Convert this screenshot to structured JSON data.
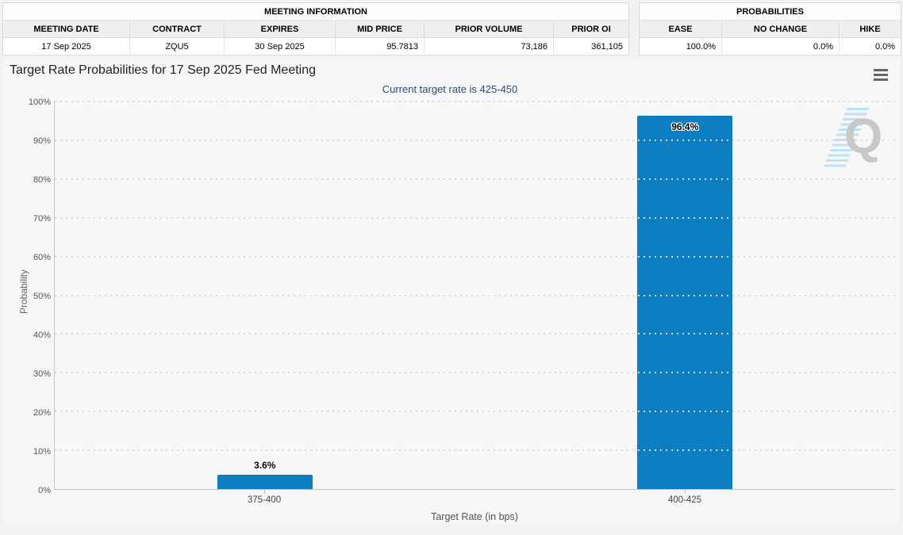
{
  "meeting_info": {
    "title": "MEETING INFORMATION",
    "columns": [
      "MEETING DATE",
      "CONTRACT",
      "EXPIRES",
      "MID PRICE",
      "PRIOR VOLUME",
      "PRIOR OI"
    ],
    "values": [
      "17 Sep 2025",
      "ZQU5",
      "30 Sep 2025",
      "95.7813",
      "73,186",
      "361,105"
    ]
  },
  "probabilities": {
    "title": "PROBABILITIES",
    "columns": [
      "EASE",
      "NO CHANGE",
      "HIKE"
    ],
    "values": [
      "100.0%",
      "0.0%",
      "0.0%"
    ]
  },
  "chart": {
    "title": "Target Rate Probabilities for 17 Sep 2025 Fed Meeting",
    "subtitle": "Current target rate is 425-450",
    "menu_icon": "hamburger-menu",
    "watermark_letter": "Q"
  },
  "chart_data": {
    "type": "bar",
    "title": "Target Rate Probabilities for 17 Sep 2025 Fed Meeting",
    "subtitle": "Current target rate is 425-450",
    "categories": [
      "375-400",
      "400-425"
    ],
    "values": [
      3.6,
      96.4
    ],
    "value_labels": [
      "3.6%",
      "96.4%"
    ],
    "xlabel": "Target Rate (in bps)",
    "ylabel": "Probability",
    "ylim": [
      0,
      100
    ],
    "yticks": [
      0,
      10,
      20,
      30,
      40,
      50,
      60,
      70,
      80,
      90,
      100
    ],
    "ytick_labels": [
      "0%",
      "10%",
      "20%",
      "30%",
      "40%",
      "50%",
      "60%",
      "70%",
      "80%",
      "90%",
      "100%"
    ],
    "bar_color": "#0d7ec2",
    "grid": "horizontal dotted",
    "legend": "none"
  },
  "colors": {
    "bar": "#0d7ec2",
    "subtitle": "#2c4c72",
    "gridline": "#d9d9d9",
    "card_bg": "#f7f7f8",
    "watermark_gray": "#c8c8c8",
    "watermark_blue": "#b3ddf6"
  }
}
